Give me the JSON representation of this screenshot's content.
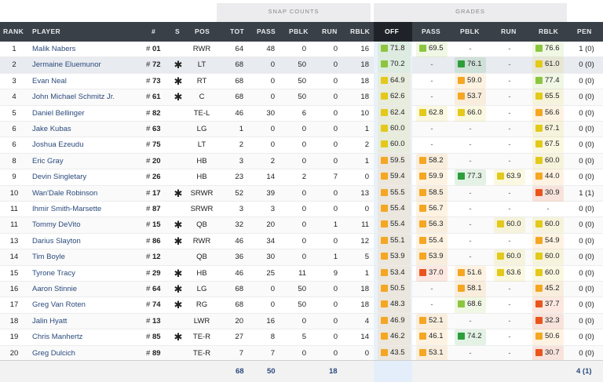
{
  "groups": {
    "snap_counts": "SNAP COUNTS",
    "grades": "GRADES"
  },
  "headers": {
    "rank": "RANK",
    "player": "PLAYER",
    "num": "#",
    "s": "S",
    "pos": "POS",
    "tot": "TOT",
    "pass": "PASS",
    "pblk": "PBLK",
    "run": "RUN",
    "rblk": "RBLK",
    "off": "OFF",
    "g_pass": "PASS",
    "g_pblk": "PBLK",
    "g_run": "RUN",
    "g_rblk": "RBLK",
    "pen": "PEN"
  },
  "colors": {
    "dark_green": "#2e9e3a",
    "light_green": "#8cc63f",
    "yellow": "#e3c91b",
    "orange": "#f5a623",
    "red_orange": "#e8561d",
    "link": "#2b4a7c",
    "header_bg": "#394048"
  },
  "rows": [
    {
      "rank": "1",
      "name": "Malik Nabers",
      "num": "01",
      "s": "",
      "pos": "RWR",
      "tot": "64",
      "pass": "48",
      "pblk": "0",
      "run": "0",
      "rblk": "16",
      "off": {
        "v": "71.8",
        "c": "light_green"
      },
      "g_pass": {
        "v": "69.5",
        "c": "light_green"
      },
      "g_pblk": {
        "v": "-",
        "c": ""
      },
      "g_run": {
        "v": "-",
        "c": ""
      },
      "g_rblk": {
        "v": "76.6",
        "c": "light_green"
      },
      "pen": "1 (0)"
    },
    {
      "rank": "2",
      "name": "Jermaine Eluemunor",
      "num": "72",
      "s": "✱",
      "pos": "LT",
      "tot": "68",
      "pass": "0",
      "pblk": "50",
      "run": "0",
      "rblk": "18",
      "off": {
        "v": "70.2",
        "c": "light_green"
      },
      "g_pass": {
        "v": "-",
        "c": ""
      },
      "g_pblk": {
        "v": "76.1",
        "c": "dark_green"
      },
      "g_run": {
        "v": "-",
        "c": ""
      },
      "g_rblk": {
        "v": "61.0",
        "c": "yellow"
      },
      "pen": "0 (0)"
    },
    {
      "rank": "3",
      "name": "Evan Neal",
      "num": "73",
      "s": "✱",
      "pos": "RT",
      "tot": "68",
      "pass": "0",
      "pblk": "50",
      "run": "0",
      "rblk": "18",
      "off": {
        "v": "64.9",
        "c": "yellow"
      },
      "g_pass": {
        "v": "-",
        "c": ""
      },
      "g_pblk": {
        "v": "59.0",
        "c": "orange"
      },
      "g_run": {
        "v": "-",
        "c": ""
      },
      "g_rblk": {
        "v": "77.4",
        "c": "light_green"
      },
      "pen": "0 (0)"
    },
    {
      "rank": "4",
      "name": "John Michael Schmitz Jr.",
      "num": "61",
      "s": "✱",
      "pos": "C",
      "tot": "68",
      "pass": "0",
      "pblk": "50",
      "run": "0",
      "rblk": "18",
      "off": {
        "v": "62.6",
        "c": "yellow"
      },
      "g_pass": {
        "v": "-",
        "c": ""
      },
      "g_pblk": {
        "v": "53.7",
        "c": "orange"
      },
      "g_run": {
        "v": "-",
        "c": ""
      },
      "g_rblk": {
        "v": "65.5",
        "c": "yellow"
      },
      "pen": "0 (0)"
    },
    {
      "rank": "5",
      "name": "Daniel Bellinger",
      "num": "82",
      "s": "",
      "pos": "TE-L",
      "tot": "46",
      "pass": "30",
      "pblk": "6",
      "run": "0",
      "rblk": "10",
      "off": {
        "v": "62.4",
        "c": "yellow"
      },
      "g_pass": {
        "v": "62.8",
        "c": "yellow"
      },
      "g_pblk": {
        "v": "66.0",
        "c": "yellow"
      },
      "g_run": {
        "v": "-",
        "c": ""
      },
      "g_rblk": {
        "v": "56.6",
        "c": "orange"
      },
      "pen": "0 (0)"
    },
    {
      "rank": "6",
      "name": "Jake Kubas",
      "num": "63",
      "s": "",
      "pos": "LG",
      "tot": "1",
      "pass": "0",
      "pblk": "0",
      "run": "0",
      "rblk": "1",
      "off": {
        "v": "60.0",
        "c": "yellow"
      },
      "g_pass": {
        "v": "-",
        "c": ""
      },
      "g_pblk": {
        "v": "-",
        "c": ""
      },
      "g_run": {
        "v": "-",
        "c": ""
      },
      "g_rblk": {
        "v": "67.1",
        "c": "yellow"
      },
      "pen": "0 (0)"
    },
    {
      "rank": "6",
      "name": "Joshua Ezeudu",
      "num": "75",
      "s": "",
      "pos": "LT",
      "tot": "2",
      "pass": "0",
      "pblk": "0",
      "run": "0",
      "rblk": "2",
      "off": {
        "v": "60.0",
        "c": "yellow"
      },
      "g_pass": {
        "v": "-",
        "c": ""
      },
      "g_pblk": {
        "v": "-",
        "c": ""
      },
      "g_run": {
        "v": "-",
        "c": ""
      },
      "g_rblk": {
        "v": "67.5",
        "c": "yellow"
      },
      "pen": "0 (0)"
    },
    {
      "rank": "8",
      "name": "Eric Gray",
      "num": "20",
      "s": "",
      "pos": "HB",
      "tot": "3",
      "pass": "2",
      "pblk": "0",
      "run": "0",
      "rblk": "1",
      "off": {
        "v": "59.5",
        "c": "orange"
      },
      "g_pass": {
        "v": "58.2",
        "c": "orange"
      },
      "g_pblk": {
        "v": "-",
        "c": ""
      },
      "g_run": {
        "v": "-",
        "c": ""
      },
      "g_rblk": {
        "v": "60.0",
        "c": "yellow"
      },
      "pen": "0 (0)"
    },
    {
      "rank": "9",
      "name": "Devin Singletary",
      "num": "26",
      "s": "",
      "pos": "HB",
      "tot": "23",
      "pass": "14",
      "pblk": "2",
      "run": "7",
      "rblk": "0",
      "off": {
        "v": "59.4",
        "c": "orange"
      },
      "g_pass": {
        "v": "59.9",
        "c": "orange"
      },
      "g_pblk": {
        "v": "77.3",
        "c": "dark_green"
      },
      "g_run": {
        "v": "63.9",
        "c": "yellow"
      },
      "g_rblk": {
        "v": "44.0",
        "c": "orange"
      },
      "pen": "0 (0)"
    },
    {
      "rank": "10",
      "name": "Wan'Dale Robinson",
      "num": "17",
      "s": "✱",
      "pos": "SRWR",
      "tot": "52",
      "pass": "39",
      "pblk": "0",
      "run": "0",
      "rblk": "13",
      "off": {
        "v": "55.5",
        "c": "orange"
      },
      "g_pass": {
        "v": "58.5",
        "c": "orange"
      },
      "g_pblk": {
        "v": "-",
        "c": ""
      },
      "g_run": {
        "v": "-",
        "c": ""
      },
      "g_rblk": {
        "v": "30.9",
        "c": "red_orange"
      },
      "pen": "1 (1)"
    },
    {
      "rank": "11",
      "name": "Ihmir Smith-Marsette",
      "num": "87",
      "s": "",
      "pos": "SRWR",
      "tot": "3",
      "pass": "3",
      "pblk": "0",
      "run": "0",
      "rblk": "0",
      "off": {
        "v": "55.4",
        "c": "orange"
      },
      "g_pass": {
        "v": "56.7",
        "c": "orange"
      },
      "g_pblk": {
        "v": "-",
        "c": ""
      },
      "g_run": {
        "v": "-",
        "c": ""
      },
      "g_rblk": {
        "v": "-",
        "c": ""
      },
      "pen": "0 (0)"
    },
    {
      "rank": "11",
      "name": "Tommy DeVito",
      "num": "15",
      "s": "✱",
      "pos": "QB",
      "tot": "32",
      "pass": "20",
      "pblk": "0",
      "run": "1",
      "rblk": "11",
      "off": {
        "v": "55.4",
        "c": "orange"
      },
      "g_pass": {
        "v": "56.3",
        "c": "orange"
      },
      "g_pblk": {
        "v": "-",
        "c": ""
      },
      "g_run": {
        "v": "60.0",
        "c": "yellow"
      },
      "g_rblk": {
        "v": "60.0",
        "c": "yellow"
      },
      "pen": "0 (0)"
    },
    {
      "rank": "13",
      "name": "Darius Slayton",
      "num": "86",
      "s": "✱",
      "pos": "RWR",
      "tot": "46",
      "pass": "34",
      "pblk": "0",
      "run": "0",
      "rblk": "12",
      "off": {
        "v": "55.1",
        "c": "orange"
      },
      "g_pass": {
        "v": "55.4",
        "c": "orange"
      },
      "g_pblk": {
        "v": "-",
        "c": ""
      },
      "g_run": {
        "v": "-",
        "c": ""
      },
      "g_rblk": {
        "v": "54.9",
        "c": "orange"
      },
      "pen": "0 (0)"
    },
    {
      "rank": "14",
      "name": "Tim Boyle",
      "num": "12",
      "s": "",
      "pos": "QB",
      "tot": "36",
      "pass": "30",
      "pblk": "0",
      "run": "1",
      "rblk": "5",
      "off": {
        "v": "53.9",
        "c": "orange"
      },
      "g_pass": {
        "v": "53.9",
        "c": "orange"
      },
      "g_pblk": {
        "v": "-",
        "c": ""
      },
      "g_run": {
        "v": "60.0",
        "c": "yellow"
      },
      "g_rblk": {
        "v": "60.0",
        "c": "yellow"
      },
      "pen": "0 (0)"
    },
    {
      "rank": "15",
      "name": "Tyrone Tracy",
      "num": "29",
      "s": "✱",
      "pos": "HB",
      "tot": "46",
      "pass": "25",
      "pblk": "11",
      "run": "9",
      "rblk": "1",
      "off": {
        "v": "53.4",
        "c": "orange"
      },
      "g_pass": {
        "v": "37.0",
        "c": "red_orange"
      },
      "g_pblk": {
        "v": "51.6",
        "c": "orange"
      },
      "g_run": {
        "v": "63.6",
        "c": "yellow"
      },
      "g_rblk": {
        "v": "60.0",
        "c": "yellow"
      },
      "pen": "0 (0)"
    },
    {
      "rank": "16",
      "name": "Aaron Stinnie",
      "num": "64",
      "s": "✱",
      "pos": "LG",
      "tot": "68",
      "pass": "0",
      "pblk": "50",
      "run": "0",
      "rblk": "18",
      "off": {
        "v": "50.5",
        "c": "orange"
      },
      "g_pass": {
        "v": "-",
        "c": ""
      },
      "g_pblk": {
        "v": "58.1",
        "c": "orange"
      },
      "g_run": {
        "v": "-",
        "c": ""
      },
      "g_rblk": {
        "v": "45.2",
        "c": "orange"
      },
      "pen": "0 (0)"
    },
    {
      "rank": "17",
      "name": "Greg Van Roten",
      "num": "74",
      "s": "✱",
      "pos": "RG",
      "tot": "68",
      "pass": "0",
      "pblk": "50",
      "run": "0",
      "rblk": "18",
      "off": {
        "v": "48.3",
        "c": "orange"
      },
      "g_pass": {
        "v": "-",
        "c": ""
      },
      "g_pblk": {
        "v": "68.6",
        "c": "light_green"
      },
      "g_run": {
        "v": "-",
        "c": ""
      },
      "g_rblk": {
        "v": "37.7",
        "c": "red_orange"
      },
      "pen": "0 (0)"
    },
    {
      "rank": "18",
      "name": "Jalin Hyatt",
      "num": "13",
      "s": "",
      "pos": "LWR",
      "tot": "20",
      "pass": "16",
      "pblk": "0",
      "run": "0",
      "rblk": "4",
      "off": {
        "v": "46.9",
        "c": "orange"
      },
      "g_pass": {
        "v": "52.1",
        "c": "orange"
      },
      "g_pblk": {
        "v": "-",
        "c": ""
      },
      "g_run": {
        "v": "-",
        "c": ""
      },
      "g_rblk": {
        "v": "32.3",
        "c": "red_orange"
      },
      "pen": "0 (0)"
    },
    {
      "rank": "19",
      "name": "Chris Manhertz",
      "num": "85",
      "s": "✱",
      "pos": "TE-R",
      "tot": "27",
      "pass": "8",
      "pblk": "5",
      "run": "0",
      "rblk": "14",
      "off": {
        "v": "46.2",
        "c": "orange"
      },
      "g_pass": {
        "v": "46.1",
        "c": "orange"
      },
      "g_pblk": {
        "v": "74.2",
        "c": "dark_green"
      },
      "g_run": {
        "v": "-",
        "c": ""
      },
      "g_rblk": {
        "v": "50.6",
        "c": "orange"
      },
      "pen": "0 (0)"
    },
    {
      "rank": "20",
      "name": "Greg Dulcich",
      "num": "89",
      "s": "",
      "pos": "TE-R",
      "tot": "7",
      "pass": "7",
      "pblk": "0",
      "run": "0",
      "rblk": "0",
      "off": {
        "v": "43.5",
        "c": "orange"
      },
      "g_pass": {
        "v": "53.1",
        "c": "orange"
      },
      "g_pblk": {
        "v": "-",
        "c": ""
      },
      "g_run": {
        "v": "-",
        "c": ""
      },
      "g_rblk": {
        "v": "30.7",
        "c": "red_orange"
      },
      "pen": "0 (0)"
    }
  ],
  "footer": {
    "tot": "68",
    "pass": "50",
    "run": "18",
    "pen": "4 (1)"
  }
}
